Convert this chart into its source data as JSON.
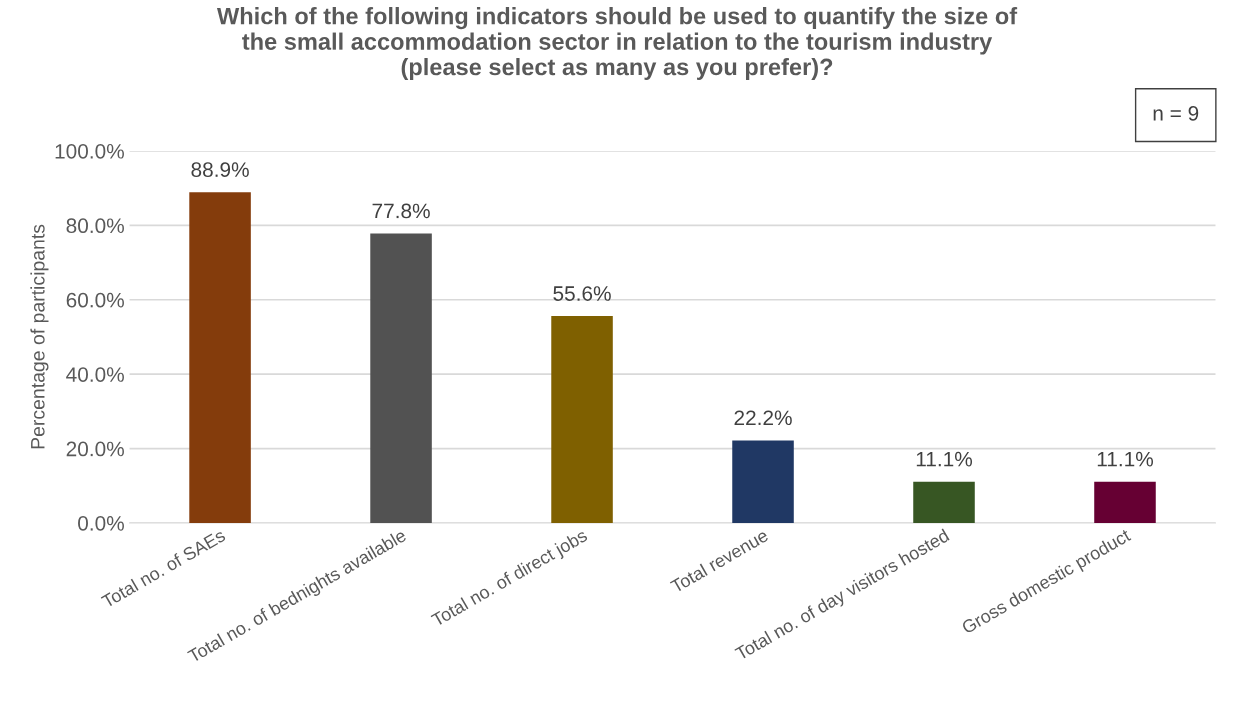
{
  "chart_data": {
    "type": "bar",
    "title": "Which of the following indicators should be used to quantify the size of\nthe small accommodation sector in relation to the tourism industry\n(please select as many as you prefer)?",
    "ylabel": "Percentage of participants",
    "categories": [
      "Total no. of SAEs",
      "Total no. of bednights available",
      "Total no. of direct jobs",
      "Total revenue",
      "Total no. of day visitors hosted",
      "Gross domestic product"
    ],
    "values": [
      88.9,
      77.8,
      55.6,
      22.2,
      11.1,
      11.1
    ],
    "value_labels": [
      "88.9%",
      "77.8%",
      "55.6%",
      "22.2%",
      "11.1%",
      "11.1%"
    ],
    "colors": [
      "#843c0c",
      "#525252",
      "#7f6000",
      "#203864",
      "#375623",
      "#660033"
    ],
    "ylim": [
      0,
      100
    ],
    "yticks": [
      {
        "value": 0,
        "label": "0.0%"
      },
      {
        "value": 20,
        "label": "20.0%"
      },
      {
        "value": 40,
        "label": "40.0%"
      },
      {
        "value": 60,
        "label": "60.0%"
      },
      {
        "value": 80,
        "label": "80.0%"
      },
      {
        "value": 100,
        "label": "100.0%"
      }
    ],
    "grid": "y",
    "legend": false,
    "annotations": [
      "n = 9"
    ]
  }
}
